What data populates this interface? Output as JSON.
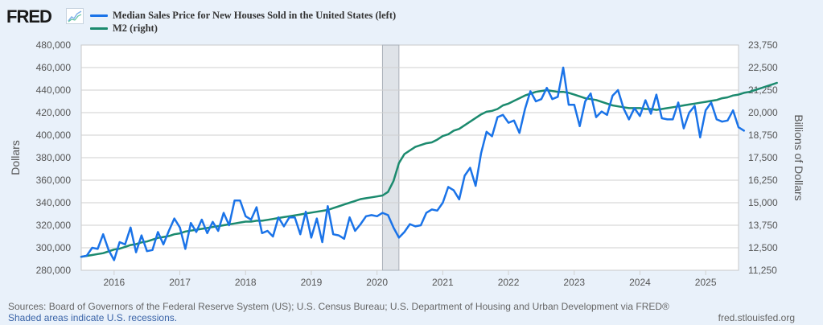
{
  "header": {
    "logo_text": "FRED",
    "logo_icon": "line-chart-icon"
  },
  "legend": [
    {
      "label": "Median Sales Price for New Houses Sold in the United States (left)",
      "color": "#1a73e8"
    },
    {
      "label": "M2 (right)",
      "color": "#1b8a6e"
    }
  ],
  "footer": {
    "sources": "Sources: Board of Governors of the Federal Reserve System (US); U.S. Census Bureau; U.S. Department of Housing and Urban Development via FRED®",
    "recession_note": "Shaded areas indicate U.S. recessions.",
    "site": "fred.stlouisfed.org"
  },
  "chart_data": {
    "type": "line",
    "title": "",
    "xlabel": "",
    "ylabel_left": "Dollars",
    "ylabel_right": "Billions of Dollars",
    "x_start": "2015-07",
    "x_frequency": "monthly",
    "xlim": [
      2015.5,
      2025.5
    ],
    "x_ticks": [
      "2016",
      "2017",
      "2018",
      "2019",
      "2020",
      "2021",
      "2022",
      "2023",
      "2024",
      "2025"
    ],
    "ylim_left": [
      280000,
      480000
    ],
    "y_ticks_left": [
      "280,000",
      "300,000",
      "320,000",
      "340,000",
      "360,000",
      "380,000",
      "400,000",
      "420,000",
      "440,000",
      "460,000",
      "480,000"
    ],
    "ylim_right": [
      11250,
      23750
    ],
    "y_ticks_right": [
      "11,250",
      "12,500",
      "13,750",
      "15,000",
      "16,250",
      "17,500",
      "18,750",
      "20,000",
      "21,250",
      "22,500",
      "23,750"
    ],
    "grid": true,
    "legend_position": "top-left",
    "recessions": [
      {
        "start": 2020.083,
        "end": 2020.333
      }
    ],
    "series": [
      {
        "name": "Median Sales Price for New Houses Sold in the United States",
        "axis": "left",
        "color": "#1a73e8",
        "values": [
          292000,
          293000,
          300000,
          299000,
          312000,
          298000,
          289000,
          305000,
          303000,
          318000,
          296000,
          311000,
          297000,
          298000,
          314000,
          303000,
          315000,
          326000,
          318000,
          299000,
          322000,
          314000,
          325000,
          313000,
          323000,
          315000,
          331000,
          320000,
          342000,
          342000,
          328000,
          325000,
          336000,
          313000,
          315000,
          310000,
          327000,
          319000,
          327000,
          327000,
          312000,
          332000,
          309000,
          326000,
          305000,
          337000,
          312000,
          311000,
          308000,
          327000,
          315000,
          321000,
          328000,
          329000,
          328000,
          331000,
          329000,
          318000,
          309000,
          314000,
          321000,
          319000,
          320000,
          331000,
          334000,
          333000,
          340000,
          354000,
          351000,
          343000,
          364000,
          371000,
          355000,
          384000,
          403000,
          399000,
          416000,
          418000,
          411000,
          413000,
          402000,
          423000,
          439000,
          430000,
          432000,
          442000,
          432000,
          434000,
          460000,
          427000,
          427000,
          408000,
          430000,
          437000,
          416000,
          421000,
          418000,
          435000,
          440000,
          424000,
          414000,
          424000,
          417000,
          431000,
          419000,
          436000,
          415000,
          414000,
          414000,
          429000,
          406000,
          420000,
          426000,
          398000,
          422000,
          429000,
          414000,
          412000,
          413000,
          422000,
          407000,
          404000
        ]
      },
      {
        "name": "M2",
        "axis": "right",
        "color": "#1b8a6e",
        "values": [
          12000,
          12050,
          12100,
          12150,
          12200,
          12300,
          12400,
          12450,
          12550,
          12650,
          12700,
          12800,
          12850,
          12950,
          13050,
          13100,
          13150,
          13250,
          13300,
          13400,
          13450,
          13500,
          13550,
          13600,
          13650,
          13700,
          13750,
          13800,
          13850,
          13900,
          13950,
          13950,
          14000,
          14000,
          14050,
          14100,
          14150,
          14200,
          14250,
          14300,
          14350,
          14400,
          14450,
          14500,
          14550,
          14600,
          14700,
          14800,
          14900,
          15000,
          15100,
          15200,
          15250,
          15300,
          15350,
          15400,
          15600,
          16200,
          17200,
          17700,
          17900,
          18100,
          18200,
          18300,
          18350,
          18500,
          18700,
          18800,
          19000,
          19100,
          19300,
          19500,
          19700,
          19900,
          20050,
          20100,
          20200,
          20400,
          20500,
          20650,
          20800,
          20950,
          21050,
          21150,
          21200,
          21250,
          21200,
          21150,
          21150,
          21100,
          21000,
          20900,
          20800,
          20750,
          20700,
          20600,
          20500,
          20400,
          20350,
          20300,
          20250,
          20250,
          20250,
          20200,
          20200,
          20150,
          20200,
          20250,
          20300,
          20350,
          20400,
          20450,
          20500,
          20550,
          20600,
          20650,
          20700,
          20800,
          20850,
          20950,
          21000,
          21100,
          21150,
          21250,
          21350,
          21450,
          21550,
          21650
        ]
      }
    ]
  }
}
